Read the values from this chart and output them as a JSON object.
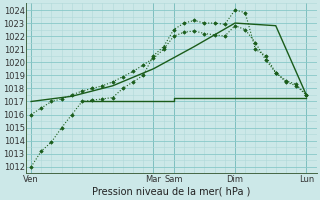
{
  "background_color": "#cce8e8",
  "grid_minor_color": "#b0d8d8",
  "grid_major_color": "#88c8c8",
  "line_color": "#1a5c1a",
  "title": "Pression niveau de la mer( hPa )",
  "ylim": [
    1011.5,
    1024.5
  ],
  "yticks": [
    1012,
    1013,
    1014,
    1015,
    1016,
    1017,
    1018,
    1019,
    1020,
    1021,
    1022,
    1023,
    1024
  ],
  "x_day_labels": [
    "Ven",
    "Mar",
    "Sam",
    "Dim",
    "Lun"
  ],
  "x_day_positions": [
    0,
    12,
    14,
    20,
    27
  ],
  "xlim": [
    -0.5,
    28
  ],
  "num_x_minor": 1,
  "series1_x": [
    0,
    1,
    2,
    3,
    4,
    5,
    6,
    7,
    8,
    9,
    10,
    11,
    12,
    13,
    14,
    15,
    16,
    17,
    18,
    19,
    20,
    21,
    22,
    23,
    24,
    25,
    26,
    27
  ],
  "series1_y": [
    1012.0,
    1013.2,
    1013.9,
    1015.0,
    1016.0,
    1017.0,
    1017.1,
    1017.2,
    1017.3,
    1018.0,
    1018.5,
    1019.0,
    1020.5,
    1021.2,
    1022.5,
    1023.0,
    1023.2,
    1023.0,
    1023.0,
    1022.9,
    1024.0,
    1023.8,
    1021.0,
    1020.5,
    1019.2,
    1018.5,
    1018.2,
    1017.5
  ],
  "series2_x": [
    0,
    1,
    2,
    3,
    4,
    5,
    6,
    7,
    8,
    9,
    10,
    11,
    12,
    13,
    14,
    15,
    16,
    17,
    18,
    19,
    20,
    21,
    22,
    23,
    24,
    25,
    26,
    27
  ],
  "series2_y": [
    1016.0,
    1016.5,
    1017.0,
    1017.2,
    1017.5,
    1017.8,
    1018.0,
    1018.2,
    1018.5,
    1018.9,
    1019.3,
    1019.8,
    1020.3,
    1021.0,
    1022.0,
    1022.3,
    1022.4,
    1022.2,
    1022.1,
    1022.0,
    1022.8,
    1022.5,
    1021.5,
    1020.2,
    1019.2,
    1018.6,
    1018.3,
    1017.5
  ],
  "series3_x": [
    0,
    4,
    8,
    12,
    16,
    20,
    24,
    27
  ],
  "series3_y": [
    1017.0,
    1017.4,
    1018.2,
    1019.5,
    1021.2,
    1023.0,
    1022.8,
    1017.5
  ],
  "flat_line_x": [
    5,
    27
  ],
  "flat_line_y": 1017.0,
  "flat_step_x": 14,
  "flat_step_y": 1017.3
}
